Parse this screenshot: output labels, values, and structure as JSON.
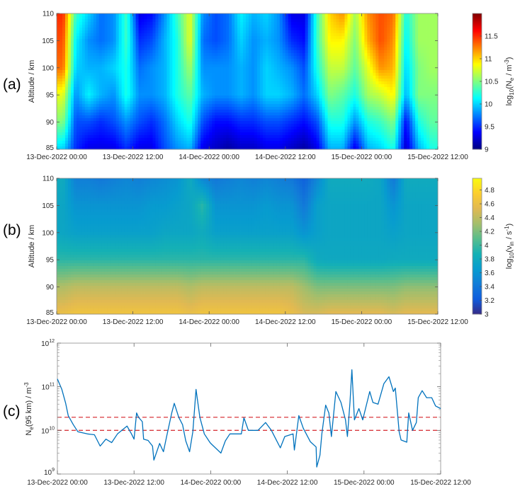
{
  "figure": {
    "panel_labels": [
      "(a)",
      "(b)",
      "(c)"
    ]
  },
  "chart_data": [
    {
      "type": "heatmap",
      "panel": "(a)",
      "ylabel": "Altitude / km",
      "xlabel": "",
      "x_unit": "hours since 13-Dec-2022 00:00",
      "xlim": [
        0,
        60
      ],
      "ylim": [
        85,
        110
      ],
      "x_ticks": [
        0,
        12,
        24,
        36,
        48,
        60
      ],
      "x_tick_labels": [
        "13-Dec-2022 00:00",
        "13-Dec-2022 12:00",
        "14-Dec-2022 00:00",
        "14-Dec-2022 12:00",
        "15-Dec-2022 00:00",
        "15-Dec-2022 12:00"
      ],
      "y_ticks": [
        85,
        90,
        95,
        100,
        105,
        110
      ],
      "y_tick_labels": [
        "85",
        "90",
        "95",
        "100",
        "105",
        "110"
      ],
      "colormap": "jet",
      "clim": [
        9,
        12
      ],
      "colorbar": {
        "ticks": [
          9,
          9.5,
          10,
          10.5,
          11,
          11.5
        ],
        "tick_labels": [
          "9",
          "9.5",
          "10",
          "10.5",
          "11",
          "11.5"
        ],
        "label": {
          "pre": "log",
          "sub1": "10",
          "mid": "(N",
          "sub2": "e",
          "mid2": " / m",
          "sup": "-3",
          "post": ")"
        }
      },
      "grid_x_hours": [
        1,
        3,
        5,
        7,
        9,
        11,
        13,
        15,
        17,
        19,
        21,
        23,
        25,
        27,
        29,
        31,
        33,
        35,
        37,
        39,
        41,
        43,
        45,
        47,
        49,
        51,
        53,
        55,
        57,
        59
      ],
      "grid_altitudes": [
        110,
        105,
        100,
        95,
        90,
        85
      ],
      "values_log10": [
        [
          11.5,
          11.4,
          11.3,
          10.8,
          10.5,
          10.0
        ],
        [
          10.3,
          10.1,
          10.0,
          9.8,
          9.6,
          9.5
        ],
        [
          10.0,
          9.8,
          9.9,
          10.1,
          9.6,
          9.3
        ],
        [
          9.7,
          9.7,
          9.9,
          9.9,
          9.5,
          9.3
        ],
        [
          9.8,
          9.8,
          10.0,
          9.8,
          9.6,
          9.3
        ],
        [
          10.3,
          10.3,
          10.2,
          10.2,
          9.8,
          9.5
        ],
        [
          9.3,
          9.5,
          9.7,
          9.8,
          9.6,
          9.3
        ],
        [
          9.4,
          9.6,
          9.8,
          9.8,
          9.5,
          9.3
        ],
        [
          9.8,
          9.9,
          9.9,
          9.9,
          9.7,
          9.6
        ],
        [
          10.3,
          10.2,
          10.2,
          10.2,
          10.0,
          9.8
        ],
        [
          10.8,
          10.8,
          10.6,
          10.4,
          10.2,
          9.9
        ],
        [
          9.8,
          9.7,
          9.8,
          9.9,
          9.6,
          9.3
        ],
        [
          9.6,
          9.6,
          9.8,
          9.8,
          9.4,
          9.2
        ],
        [
          9.7,
          9.7,
          9.8,
          9.8,
          9.4,
          9.1
        ],
        [
          10.1,
          10.0,
          9.9,
          9.9,
          9.5,
          9.2
        ],
        [
          9.9,
          9.8,
          9.8,
          9.8,
          9.5,
          9.2
        ],
        [
          10.0,
          9.9,
          10.0,
          10.0,
          9.6,
          9.3
        ],
        [
          9.8,
          9.8,
          9.9,
          10.0,
          9.6,
          9.3
        ],
        [
          9.3,
          9.5,
          9.8,
          9.9,
          9.5,
          9.2
        ],
        [
          9.3,
          9.4,
          9.6,
          9.7,
          9.4,
          9.1
        ],
        [
          10.3,
          10.3,
          10.2,
          10.0,
          9.6,
          9.3
        ],
        [
          11.0,
          10.9,
          10.7,
          10.5,
          10.2,
          9.9
        ],
        [
          11.2,
          10.9,
          10.7,
          10.4,
          10.2,
          9.9
        ],
        [
          10.6,
          10.5,
          10.4,
          10.2,
          9.8,
          9.3
        ],
        [
          11.2,
          11.1,
          10.8,
          10.6,
          10.2,
          9.9
        ],
        [
          11.4,
          11.4,
          11.2,
          10.7,
          10.3,
          10.0
        ],
        [
          11.3,
          11.2,
          11.1,
          10.9,
          10.5,
          10.2
        ],
        [
          10.2,
          10.1,
          10.0,
          9.9,
          9.4,
          9.2
        ],
        [
          10.6,
          10.6,
          10.5,
          10.5,
          10.2,
          9.9
        ],
        [
          10.6,
          10.6,
          10.6,
          10.5,
          10.4,
          10.2
        ]
      ]
    },
    {
      "type": "heatmap",
      "panel": "(b)",
      "ylabel": "Altitude / km",
      "xlabel": "",
      "x_unit": "hours since 13-Dec-2022 00:00",
      "xlim": [
        0,
        60
      ],
      "ylim": [
        85,
        110
      ],
      "x_ticks": [
        0,
        12,
        24,
        36,
        48,
        60
      ],
      "x_tick_labels": [
        "13-Dec-2022 00:00",
        "13-Dec-2022 12:00",
        "14-Dec-2022 00:00",
        "14-Dec-2022 12:00",
        "15-Dec-2022 00:00",
        "15-Dec-2022 12:00"
      ],
      "y_ticks": [
        85,
        90,
        95,
        100,
        105,
        110
      ],
      "y_tick_labels": [
        "85",
        "90",
        "95",
        "100",
        "105",
        "110"
      ],
      "colormap": "parula",
      "clim": [
        3,
        4.97
      ],
      "colorbar": {
        "ticks": [
          3,
          3.2,
          3.4,
          3.6,
          3.8,
          4,
          4.2,
          4.4,
          4.6,
          4.8
        ],
        "tick_labels": [
          "3",
          "3.2",
          "3.4",
          "3.6",
          "3.8",
          "4",
          "4.2",
          "4.4",
          "4.6",
          "4.8"
        ],
        "label": {
          "pre": "log",
          "sub1": "10",
          "mid": "(ν",
          "sub2": "in",
          "mid2": " / s",
          "sup": "-1",
          "post": ")"
        }
      },
      "grid_x_hours": [
        1,
        3,
        5,
        7,
        9,
        11,
        13,
        15,
        17,
        19,
        21,
        23,
        25,
        27,
        29,
        31,
        33,
        35,
        37,
        39,
        41,
        43,
        45,
        47,
        49,
        51,
        53,
        55,
        57,
        59
      ],
      "grid_altitudes": [
        110,
        105,
        100,
        95,
        90,
        85
      ],
      "values_log10": [
        [
          3.8,
          3.75,
          3.75,
          3.95,
          4.35,
          4.6
        ],
        [
          3.45,
          3.6,
          3.7,
          3.95,
          4.4,
          4.65
        ],
        [
          3.45,
          3.6,
          3.7,
          3.95,
          4.4,
          4.65
        ],
        [
          3.4,
          3.6,
          3.7,
          3.95,
          4.4,
          4.65
        ],
        [
          3.45,
          3.6,
          3.7,
          3.95,
          4.4,
          4.65
        ],
        [
          3.5,
          3.6,
          3.7,
          3.95,
          4.4,
          4.65
        ],
        [
          3.45,
          3.6,
          3.7,
          3.95,
          4.4,
          4.65
        ],
        [
          3.5,
          3.65,
          3.7,
          3.95,
          4.4,
          4.65
        ],
        [
          3.55,
          3.65,
          3.75,
          3.95,
          4.4,
          4.65
        ],
        [
          3.6,
          3.7,
          3.75,
          3.95,
          4.4,
          4.65
        ],
        [
          3.8,
          3.75,
          3.75,
          3.95,
          4.35,
          4.6
        ],
        [
          3.5,
          3.95,
          3.8,
          3.95,
          4.4,
          4.65
        ],
        [
          3.4,
          3.6,
          3.7,
          3.95,
          4.4,
          4.65
        ],
        [
          3.45,
          3.6,
          3.7,
          3.95,
          4.4,
          4.65
        ],
        [
          3.5,
          3.6,
          3.7,
          3.95,
          4.4,
          4.65
        ],
        [
          3.45,
          3.6,
          3.7,
          3.95,
          4.4,
          4.65
        ],
        [
          3.5,
          3.65,
          3.7,
          3.95,
          4.4,
          4.65
        ],
        [
          3.45,
          3.6,
          3.7,
          3.95,
          4.4,
          4.65
        ],
        [
          3.4,
          3.6,
          3.7,
          3.95,
          4.4,
          4.6
        ],
        [
          3.25,
          3.4,
          3.6,
          3.95,
          4.3,
          4.5
        ],
        [
          3.5,
          3.7,
          3.7,
          3.8,
          4.2,
          4.5
        ],
        [
          3.8,
          3.75,
          3.75,
          3.78,
          4.2,
          4.55
        ],
        [
          3.8,
          3.75,
          3.75,
          3.78,
          4.2,
          4.55
        ],
        [
          3.8,
          3.75,
          3.75,
          3.78,
          4.2,
          4.55
        ],
        [
          3.8,
          3.75,
          3.75,
          3.78,
          4.2,
          4.55
        ],
        [
          3.75,
          3.75,
          3.75,
          3.78,
          4.2,
          4.55
        ],
        [
          3.4,
          3.6,
          3.7,
          3.8,
          4.2,
          4.5
        ],
        [
          3.8,
          3.75,
          3.75,
          3.8,
          4.25,
          4.55
        ],
        [
          3.8,
          3.75,
          3.75,
          3.8,
          4.25,
          4.55
        ],
        [
          3.8,
          3.75,
          3.75,
          3.8,
          4.25,
          4.55
        ]
      ]
    },
    {
      "type": "line",
      "panel": "(c)",
      "ylabel": {
        "pre": "N",
        "sub": "e",
        "mid": "(95 km) / m",
        "sup": "-3"
      },
      "xlabel": "",
      "x_unit": "hours since 13-Dec-2022 00:00",
      "xlim": [
        0,
        60
      ],
      "y_scale": "log",
      "ylim_log10": [
        9,
        12
      ],
      "x_ticks": [
        0,
        12,
        24,
        36,
        48,
        60
      ],
      "x_tick_labels": [
        "13-Dec-2022 00:00",
        "13-Dec-2022 12:00",
        "14-Dec-2022 00:00",
        "14-Dec-2022 12:00",
        "15-Dec-2022 00:00",
        "15-Dec-2022 12:00"
      ],
      "y_ticks_log10": [
        9,
        10,
        11,
        12
      ],
      "y_tick_labels": [
        {
          "base": "10",
          "exp": "9"
        },
        {
          "base": "10",
          "exp": "10"
        },
        {
          "base": "10",
          "exp": "11"
        },
        {
          "base": "10",
          "exp": "12"
        }
      ],
      "series": [
        {
          "name": "Ne(95 km)",
          "color": "#0072bd",
          "x_hours": [
            0,
            0.7,
            1.3,
            1.7,
            2.5,
            3.2,
            4.7,
            5.8,
            6.7,
            7.6,
            8.5,
            9.4,
            10.9,
            11.6,
            12,
            12.4,
            12.7,
            13.3,
            13.5,
            14.2,
            14.9,
            15.1,
            16,
            16.6,
            17.1,
            17.9,
            18.3,
            19,
            19.6,
            20.1,
            20.7,
            21.2,
            21.7,
            22.3,
            23,
            23.9,
            24.1,
            25.6,
            26.3,
            27,
            28.8,
            29.2,
            29.9,
            31.4,
            32.6,
            33.5,
            34.2,
            34.9,
            35.6,
            36.9,
            37.1,
            37.8,
            38.5,
            39.6,
            40.5,
            40.6,
            41.1,
            41.4,
            42,
            42.5,
            42.9,
            43.6,
            44.4,
            45.1,
            45.4,
            45.8,
            46.1,
            46.5,
            47.2,
            47.8,
            48.9,
            49.4,
            50.2,
            51.1,
            51.9,
            52.6,
            52.9,
            53.5,
            53.8,
            54.7,
            55,
            55.6,
            56.2,
            56.5,
            57.1,
            57.8,
            58.6,
            59.2,
            60
          ],
          "log10_values": [
            11.18,
            10.94,
            10.62,
            10.34,
            10.13,
            9.97,
            9.92,
            9.9,
            9.64,
            9.8,
            9.72,
            9.92,
            10.1,
            9.92,
            9.8,
            10.4,
            10.3,
            10.2,
            9.8,
            9.77,
            9.64,
            9.32,
            9.7,
            9.51,
            9.86,
            10.4,
            10.62,
            10.3,
            10.13,
            9.76,
            9.51,
            9.97,
            10.94,
            10.3,
            9.92,
            9.72,
            9.69,
            9.48,
            9.76,
            9.92,
            9.92,
            10.29,
            10.0,
            10.0,
            10.18,
            10.0,
            9.8,
            9.6,
            9.86,
            9.92,
            9.55,
            10.34,
            10.05,
            9.74,
            9.62,
            9.16,
            9.43,
            9.92,
            10.58,
            10.4,
            9.86,
            10.89,
            10.64,
            10.24,
            9.86,
            10.64,
            11.39,
            10.24,
            10.5,
            10.24,
            10.89,
            10.64,
            10.6,
            11.07,
            11.23,
            10.89,
            10.97,
            9.97,
            9.78,
            9.73,
            10.4,
            10.0,
            10.18,
            10.75,
            10.91,
            10.75,
            10.75,
            10.56,
            10.5
          ]
        }
      ],
      "reference_lines": [
        {
          "log10_value": 10,
          "value": 10000000000.0,
          "style": "dashed",
          "color": "#d93a3f"
        },
        {
          "log10_value": 10.301,
          "value": 20000000000.0,
          "style": "dashed",
          "color": "#d93a3f"
        }
      ]
    }
  ]
}
